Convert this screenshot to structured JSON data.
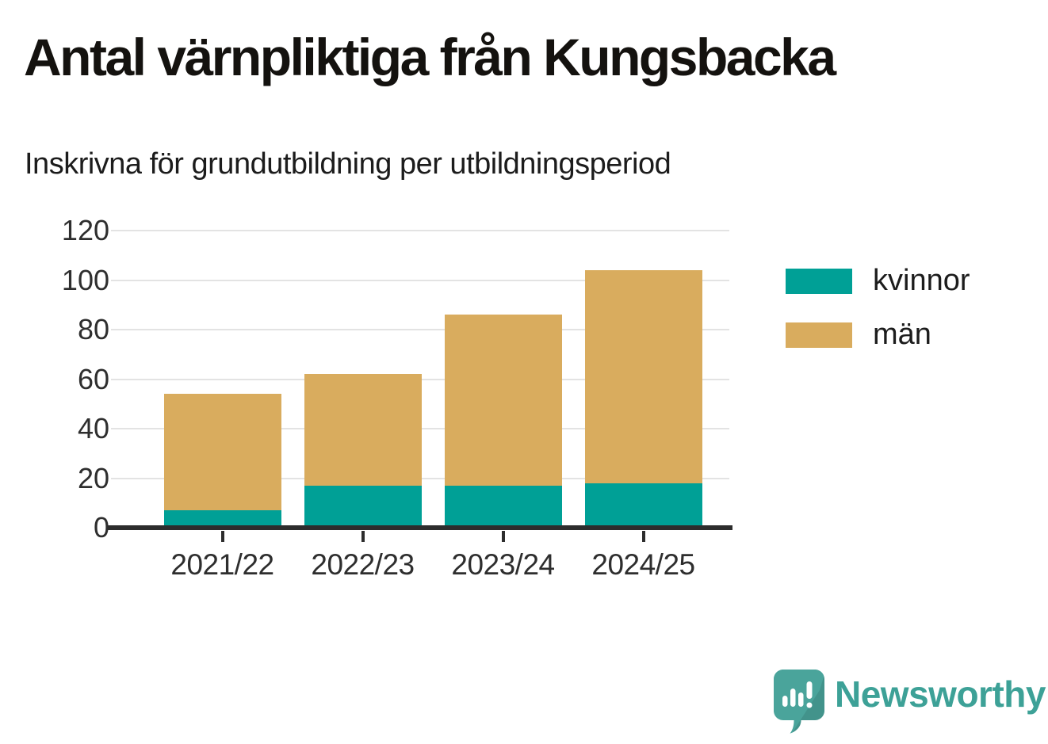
{
  "title": "Antal värnpliktiga från Kungsbacka",
  "subtitle": "Inskrivna för grundutbildning per utbildningsperiod",
  "chart_data": {
    "type": "bar",
    "stacked": true,
    "categories": [
      "2021/22",
      "2022/23",
      "2023/24",
      "2024/25"
    ],
    "series": [
      {
        "name": "kvinnor",
        "color": "#00a096",
        "values": [
          7,
          17,
          17,
          18
        ]
      },
      {
        "name": "män",
        "color": "#d9ac5e",
        "values": [
          47,
          45,
          69,
          86
        ]
      }
    ],
    "totals": [
      54,
      62,
      86,
      104
    ],
    "title": "Antal värnpliktiga från Kungsbacka",
    "subtitle": "Inskrivna för grundutbildning per utbildningsperiod",
    "xlabel": "",
    "ylabel": "",
    "ylim": [
      0,
      120
    ],
    "yticks": [
      0,
      20,
      40,
      60,
      80,
      100,
      120
    ],
    "grid": true,
    "legend_position": "right",
    "gridline_color": "#e3e3e3",
    "axis_color": "#2d2d2d"
  },
  "branding": {
    "logo_text": "Newsworthy",
    "logo_text_color": "#3da197",
    "icon_color": "#4aa49b"
  }
}
